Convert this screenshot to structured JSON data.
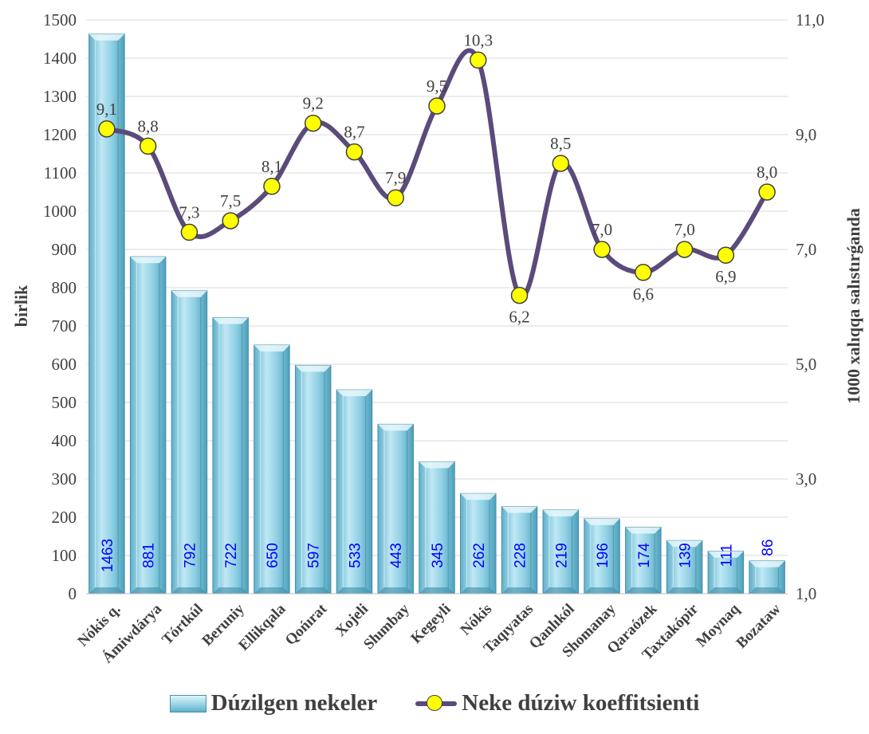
{
  "chart_data": {
    "type": "bar",
    "categories": [
      "Nókis q.",
      "Ámiwdárya",
      "Tórtkúl",
      "Beruniy",
      "Ellikqala",
      "Qońırat",
      "Xojeli",
      "Shımbay",
      "Kegeyli",
      "Nókis",
      "Taqıyatas",
      "Qanlıkól",
      "Shomanay",
      "Qaraózek",
      "Taxtakópir",
      "Moynaq",
      "Bozataw"
    ],
    "series": [
      {
        "name": "Dúzilgen nekeler",
        "type": "bar",
        "axis": "left",
        "values": [
          1463,
          881,
          792,
          722,
          650,
          597,
          533,
          443,
          345,
          262,
          228,
          219,
          196,
          174,
          139,
          111,
          86
        ],
        "labels": [
          "1463",
          "881",
          "792",
          "722",
          "650",
          "597",
          "533",
          "443",
          "345",
          "262",
          "228",
          "219",
          "196",
          "174",
          "139",
          "111",
          "86"
        ],
        "color": "#8fd0e4"
      },
      {
        "name": "Neke dúziw koeffitsienti",
        "type": "line",
        "axis": "right",
        "values": [
          9.1,
          8.8,
          7.3,
          7.5,
          8.1,
          9.2,
          8.7,
          7.9,
          9.5,
          10.3,
          6.2,
          8.5,
          7.0,
          6.6,
          7.0,
          6.9,
          8.0
        ],
        "labels": [
          "9,1",
          "8,8",
          "7,3",
          "7,5",
          "8,1",
          "9,2",
          "8,7",
          "7,9",
          "9,5",
          "10,3",
          "6,2",
          "8,5",
          "7,0",
          "6,6",
          "7,0",
          "6,9",
          "8,0"
        ],
        "color": "#5b4b7b",
        "marker_color": "#ffff00"
      }
    ],
    "ylabel": "birlik",
    "y2label": "1000 xalıqqa salıstırǵanda",
    "ylim": [
      0,
      1500
    ],
    "yticks": [
      "0",
      "100",
      "200",
      "300",
      "400",
      "500",
      "600",
      "700",
      "800",
      "900",
      "1000",
      "1100",
      "1200",
      "1300",
      "1400",
      "1500"
    ],
    "y2lim": [
      1.0,
      11.0
    ],
    "y2ticks": [
      "1,0",
      "3,0",
      "5,0",
      "7,0",
      "9,0",
      "11,0"
    ],
    "grid": true,
    "legend": "bottom"
  },
  "legend": {
    "bar_label": "Dúzilgen nekeler",
    "line_label": "Neke dúziw koeffitsienti"
  }
}
